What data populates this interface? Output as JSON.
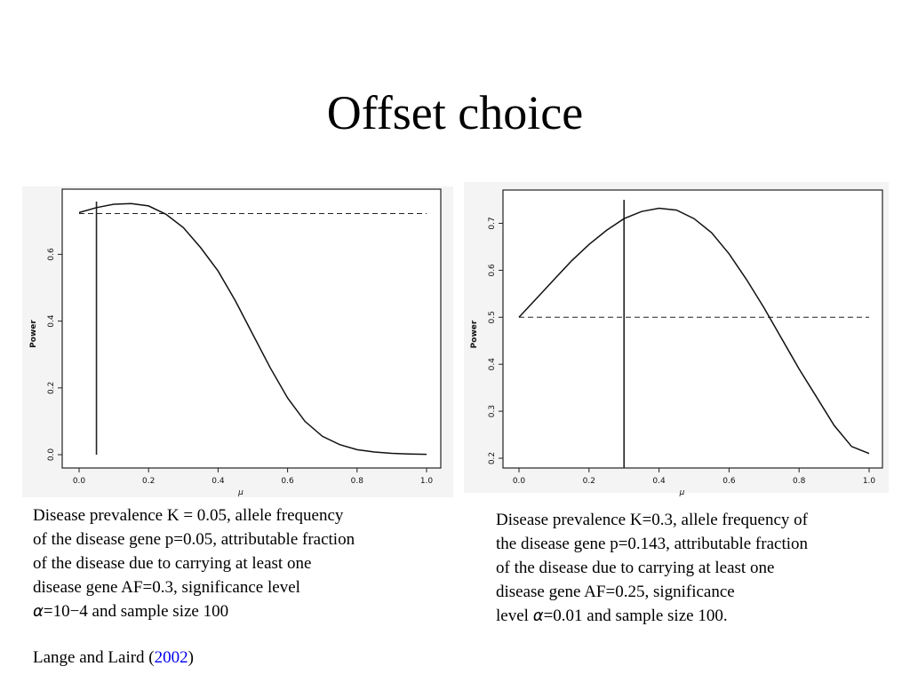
{
  "slide": {
    "title": "Offset choice"
  },
  "chart_data": [
    {
      "type": "line",
      "xlabel": "μ",
      "ylabel": "Power",
      "xlim": [
        0,
        1
      ],
      "ylim": [
        0,
        0.75
      ],
      "x_ticks": [
        "0.0",
        "0.2",
        "0.4",
        "0.6",
        "0.8",
        "1.0"
      ],
      "y_ticks": [
        "0.0",
        "0.2",
        "0.4",
        "0.6"
      ],
      "x_tick_values": [
        0,
        0.2,
        0.4,
        0.6,
        0.8,
        1.0
      ],
      "y_tick_values": [
        0,
        0.2,
        0.4,
        0.6
      ],
      "series": [
        {
          "x": [
            0.0,
            0.05,
            0.1,
            0.15,
            0.2,
            0.25,
            0.3,
            0.35,
            0.4,
            0.45,
            0.5,
            0.55,
            0.6,
            0.65,
            0.7,
            0.75,
            0.8,
            0.85,
            0.9,
            0.95,
            1.0
          ],
          "y": [
            0.725,
            0.74,
            0.75,
            0.752,
            0.745,
            0.72,
            0.68,
            0.62,
            0.55,
            0.46,
            0.36,
            0.26,
            0.17,
            0.1,
            0.055,
            0.03,
            0.015,
            0.008,
            0.004,
            0.002,
            0.001
          ]
        }
      ],
      "hline": 0.722,
      "vline": 0.05,
      "grid": false
    },
    {
      "type": "line",
      "xlabel": "μ",
      "ylabel": "Power",
      "xlim": [
        0,
        1
      ],
      "ylim": [
        0.2,
        0.75
      ],
      "x_ticks": [
        "0.0",
        "0.2",
        "0.4",
        "0.6",
        "0.8",
        "1.0"
      ],
      "y_ticks": [
        "0.2",
        "0.3",
        "0.4",
        "0.5",
        "0.6",
        "0.7"
      ],
      "x_tick_values": [
        0,
        0.2,
        0.4,
        0.6,
        0.8,
        1.0
      ],
      "y_tick_values": [
        0.2,
        0.3,
        0.4,
        0.5,
        0.6,
        0.7
      ],
      "series": [
        {
          "x": [
            0.0,
            0.05,
            0.1,
            0.15,
            0.2,
            0.25,
            0.3,
            0.35,
            0.4,
            0.45,
            0.5,
            0.55,
            0.6,
            0.65,
            0.7,
            0.75,
            0.8,
            0.85,
            0.9,
            0.95,
            1.0
          ],
          "y": [
            0.5,
            0.54,
            0.58,
            0.62,
            0.655,
            0.685,
            0.71,
            0.725,
            0.732,
            0.728,
            0.71,
            0.68,
            0.635,
            0.58,
            0.52,
            0.455,
            0.39,
            0.33,
            0.27,
            0.225,
            0.21
          ]
        }
      ],
      "hline": 0.5,
      "vline": 0.3,
      "grid": false
    }
  ],
  "captions": {
    "left_lines": [
      "Disease prevalence K = 0.05, allele frequency",
      "of the disease gene p=0.05, attributable fraction",
      "of the disease due to carrying at least one",
      "disease gene AF=0.3, significance level"
    ],
    "left_alpha_symbol": "α",
    "left_last_line": "=10−4 and sample size 100",
    "right_lines": [
      "Disease prevalence K=0.3, allele frequency of",
      "the disease gene p=0.143, attributable fraction",
      "of the disease due to carrying at least one",
      "disease gene AF=0.25, significance"
    ],
    "right_last_prefix": "level ",
    "right_alpha_symbol": "α",
    "right_last_line": "=0.01 and sample size 100."
  },
  "citation": {
    "authors": "Lange and Laird (",
    "year": "2002",
    "close": ")"
  }
}
